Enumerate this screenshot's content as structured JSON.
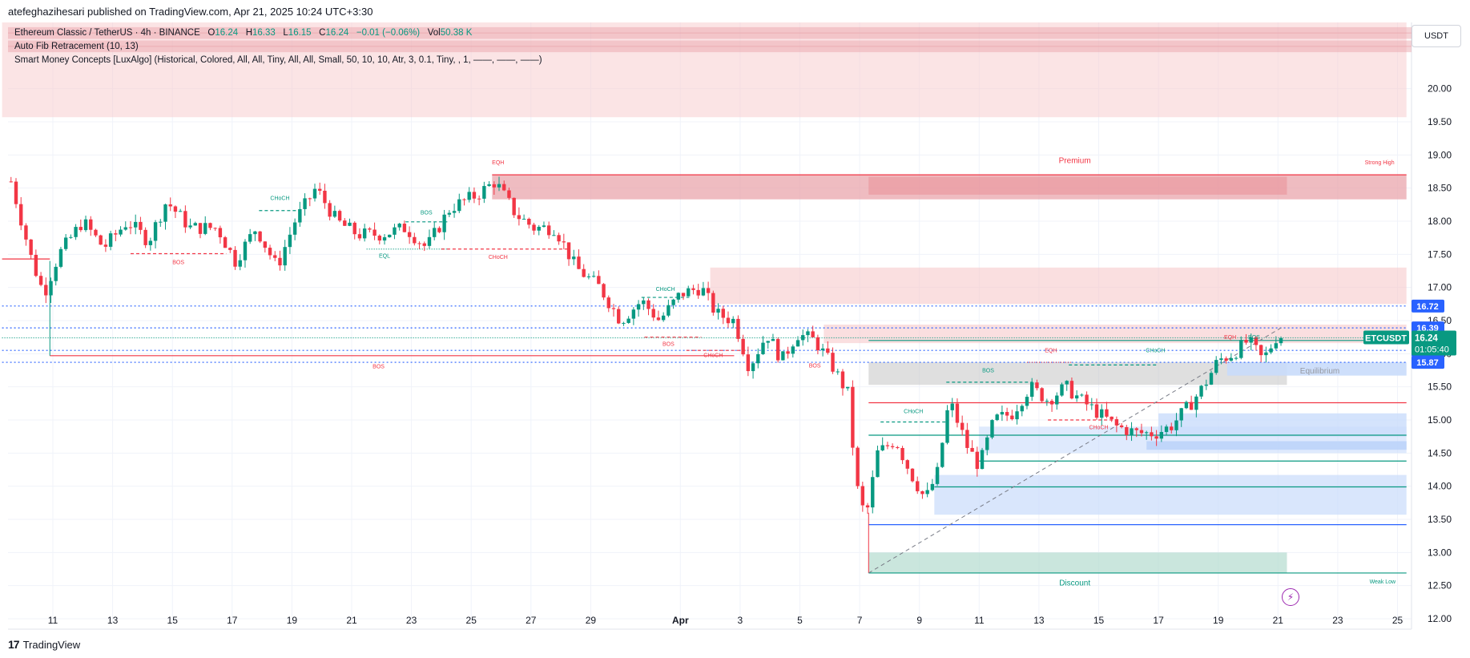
{
  "publish": {
    "text": "atefeghazihesari published on TradingView.com, Apr 21, 2025 10:24 UTC+3:30"
  },
  "legend": {
    "symbol": "Ethereum Classic / TetherUS · 4h · BINANCE",
    "o_label": "O",
    "o": "16.24",
    "h_label": "H",
    "h": "16.33",
    "l_label": "L",
    "l": "16.15",
    "c_label": "C",
    "c": "16.24",
    "change": "−0.01 (−0.06%)",
    "vol_label": "Vol",
    "vol": "50.38 K",
    "indicator1": "Auto Fib Retracement (10, 13)",
    "indicator2": "Smart Money Concepts [LuxAlgo] (Historical, Colored, All, All, Tiny, All, All, Small, 50, 10, 10, Atr, 3, 0.1, Tiny, , 1, ——, ——, ——)"
  },
  "currency": "USDT",
  "brand": "TradingView",
  "colors": {
    "up": "#089981",
    "down": "#f23645",
    "blue": "#2962ff",
    "premium": "#f7c9cc",
    "discount": "#cfe9e1",
    "demand": "#c9dcfb"
  },
  "chart_data": {
    "type": "candlestick",
    "ylim": [
      12.0,
      21.0
    ],
    "y_ticks": [
      "20.00",
      "19.50",
      "19.00",
      "18.50",
      "18.00",
      "17.50",
      "17.00",
      "16.50",
      "16.00",
      "15.50",
      "15.00",
      "14.50",
      "14.00",
      "13.50",
      "13.00",
      "12.50",
      "12.00"
    ],
    "x_ticks": [
      {
        "label": "11",
        "day": 11
      },
      {
        "label": "13",
        "day": 13
      },
      {
        "label": "15",
        "day": 15
      },
      {
        "label": "17",
        "day": 17
      },
      {
        "label": "19",
        "day": 19
      },
      {
        "label": "21",
        "day": 21
      },
      {
        "label": "23",
        "day": 23
      },
      {
        "label": "25",
        "day": 25
      },
      {
        "label": "27",
        "day": 27
      },
      {
        "label": "29",
        "day": 29
      },
      {
        "label": "Apr",
        "day": 32
      },
      {
        "label": "3",
        "day": 34
      },
      {
        "label": "5",
        "day": 36
      },
      {
        "label": "7",
        "day": 38
      },
      {
        "label": "9",
        "day": 40
      },
      {
        "label": "11",
        "day": 42
      },
      {
        "label": "13",
        "day": 44
      },
      {
        "label": "15",
        "day": 46
      },
      {
        "label": "17",
        "day": 48
      },
      {
        "label": "19",
        "day": 50
      },
      {
        "label": "21",
        "day": 52
      },
      {
        "label": "23",
        "day": 54
      },
      {
        "label": "25",
        "day": 56
      }
    ],
    "closes": [
      {
        "day": 9.6,
        "close": 18.6
      },
      {
        "day": 10.3,
        "close": 17.4
      },
      {
        "day": 10.7,
        "close": 16.9
      },
      {
        "day": 11.2,
        "close": 17.5
      },
      {
        "day": 12.0,
        "close": 18.0
      },
      {
        "day": 12.7,
        "close": 17.6
      },
      {
        "day": 13.5,
        "close": 18.0
      },
      {
        "day": 14.2,
        "close": 17.7
      },
      {
        "day": 14.8,
        "close": 18.3
      },
      {
        "day": 15.6,
        "close": 17.9
      },
      {
        "day": 16.5,
        "close": 17.9
      },
      {
        "day": 17.1,
        "close": 17.4
      },
      {
        "day": 17.8,
        "close": 17.9
      },
      {
        "day": 18.5,
        "close": 17.3
      },
      {
        "day": 19.1,
        "close": 18.0
      },
      {
        "day": 19.8,
        "close": 18.5
      },
      {
        "day": 20.5,
        "close": 18.0
      },
      {
        "day": 21.2,
        "close": 17.8
      },
      {
        "day": 22.0,
        "close": 17.8
      },
      {
        "day": 22.8,
        "close": 17.9
      },
      {
        "day": 23.5,
        "close": 17.6
      },
      {
        "day": 24.3,
        "close": 18.2
      },
      {
        "day": 25.2,
        "close": 18.4
      },
      {
        "day": 25.8,
        "close": 18.6
      },
      {
        "day": 26.5,
        "close": 18.1
      },
      {
        "day": 27.1,
        "close": 17.9
      },
      {
        "day": 27.8,
        "close": 17.9
      },
      {
        "day": 28.5,
        "close": 17.3
      },
      {
        "day": 29.3,
        "close": 17.0
      },
      {
        "day": 30.0,
        "close": 16.5
      },
      {
        "day": 30.7,
        "close": 16.8
      },
      {
        "day": 31.3,
        "close": 16.5
      },
      {
        "day": 32.0,
        "close": 16.9
      },
      {
        "day": 32.7,
        "close": 17.0
      },
      {
        "day": 33.2,
        "close": 16.6
      },
      {
        "day": 33.8,
        "close": 16.5
      },
      {
        "day": 34.3,
        "close": 15.8
      },
      {
        "day": 34.9,
        "close": 16.3
      },
      {
        "day": 35.4,
        "close": 15.9
      },
      {
        "day": 35.9,
        "close": 16.3
      },
      {
        "day": 36.5,
        "close": 16.2
      },
      {
        "day": 37.1,
        "close": 15.8
      },
      {
        "day": 37.6,
        "close": 15.4
      },
      {
        "day": 37.9,
        "close": 14.0
      },
      {
        "day": 38.2,
        "close": 13.5
      },
      {
        "day": 38.6,
        "close": 14.5
      },
      {
        "day": 39.2,
        "close": 14.7
      },
      {
        "day": 39.7,
        "close": 14.2
      },
      {
        "day": 40.2,
        "close": 13.8
      },
      {
        "day": 40.6,
        "close": 14.2
      },
      {
        "day": 41.0,
        "close": 15.3
      },
      {
        "day": 41.6,
        "close": 14.6
      },
      {
        "day": 42.0,
        "close": 14.3
      },
      {
        "day": 42.5,
        "close": 15.0
      },
      {
        "day": 43.1,
        "close": 15.1
      },
      {
        "day": 43.7,
        "close": 15.5
      },
      {
        "day": 44.3,
        "close": 15.3
      },
      {
        "day": 44.9,
        "close": 15.5
      },
      {
        "day": 45.4,
        "close": 15.3
      },
      {
        "day": 46.0,
        "close": 15.1
      },
      {
        "day": 46.6,
        "close": 14.9
      },
      {
        "day": 47.3,
        "close": 14.8
      },
      {
        "day": 47.9,
        "close": 14.8
      },
      {
        "day": 48.4,
        "close": 14.9
      },
      {
        "day": 49.0,
        "close": 15.2
      },
      {
        "day": 49.5,
        "close": 15.5
      },
      {
        "day": 50.0,
        "close": 15.9
      },
      {
        "day": 50.5,
        "close": 16.0
      },
      {
        "day": 51.0,
        "close": 16.2
      },
      {
        "day": 51.5,
        "close": 15.9
      },
      {
        "day": 52.0,
        "close": 16.3
      },
      {
        "day": 52.2,
        "close": 16.24
      }
    ],
    "price_labels": [
      {
        "price": 16.72,
        "label": "16.72",
        "kind": "level"
      },
      {
        "price": 16.39,
        "label": "16.39",
        "kind": "level"
      },
      {
        "price": 16.05,
        "label": "16.05",
        "kind": "level"
      },
      {
        "price": 15.87,
        "label": "15.87",
        "kind": "level"
      }
    ],
    "current": {
      "symbol": "ETCUSDT",
      "price": 16.24,
      "label": "16.24",
      "countdown": "01:05:40"
    },
    "zones": [
      {
        "name": "top-zone",
        "x0": 9.3,
        "x1": 56.3,
        "y0": 19.57,
        "y1": 21.0,
        "color": "#f7c9cc",
        "opacity": 0.5
      },
      {
        "name": "premium-zone",
        "x0": 25.7,
        "x1": 56.3,
        "y0": 18.33,
        "y1": 18.7,
        "color": "#e8a0a6",
        "opacity": 0.7
      },
      {
        "name": "premium-inner-zone",
        "x0": 38.3,
        "x1": 52.3,
        "y0": 18.4,
        "y1": 18.67,
        "color": "#ea8f97",
        "opacity": 0.55
      },
      {
        "name": "supply-zone",
        "x0": 33.0,
        "x1": 56.3,
        "y0": 16.75,
        "y1": 17.3,
        "color": "#f7c9cc",
        "opacity": 0.6
      },
      {
        "name": "supply-zone-2",
        "x0": 36.8,
        "x1": 56.3,
        "y0": 16.16,
        "y1": 16.44,
        "color": "#f7c9cc",
        "opacity": 0.6
      },
      {
        "name": "equilibrium-zone",
        "x0": 38.3,
        "x1": 52.3,
        "y0": 15.53,
        "y1": 15.87,
        "color": "#c4c4c4",
        "opacity": 0.55
      },
      {
        "name": "equilibrium-blue-zone",
        "x0": 50.3,
        "x1": 56.3,
        "y0": 15.67,
        "y1": 15.87,
        "color": "#c9dcfb",
        "opacity": 0.9
      },
      {
        "name": "demand-zone-1",
        "x0": 48.0,
        "x1": 56.3,
        "y0": 14.75,
        "y1": 15.1,
        "color": "#c9dcfb",
        "opacity": 0.8
      },
      {
        "name": "demand-zone-2",
        "x0": 47.6,
        "x1": 56.3,
        "y0": 14.55,
        "y1": 14.68,
        "color": "#a9c6f7",
        "opacity": 0.9
      },
      {
        "name": "demand-zone-3",
        "x0": 42.0,
        "x1": 56.3,
        "y0": 14.5,
        "y1": 14.9,
        "color": "#c9dcfb",
        "opacity": 0.6
      },
      {
        "name": "demand-zone-4",
        "x0": 40.5,
        "x1": 56.3,
        "y0": 13.57,
        "y1": 14.17,
        "color": "#c9dcfb",
        "opacity": 0.7
      },
      {
        "name": "discount-zone",
        "x0": 38.3,
        "x1": 52.3,
        "y0": 12.69,
        "y1": 13.0,
        "color": "#b3dccf",
        "opacity": 0.7
      }
    ],
    "lines": [
      {
        "name": "bos-red-line",
        "x0": 10.9,
        "x1": 33.8,
        "y": 15.97,
        "color": "#f23645",
        "dash": ""
      },
      {
        "name": "left-red-line",
        "x0": 9.3,
        "x1": 10.9,
        "y": 17.43,
        "color": "#f23645",
        "dash": ""
      },
      {
        "name": "red-level-1",
        "x0": 38.3,
        "x1": 56.3,
        "y": 15.26,
        "color": "#f23645",
        "dash": ""
      },
      {
        "name": "green-level-1",
        "x0": 38.3,
        "x1": 56.3,
        "y": 14.77,
        "color": "#089981",
        "dash": ""
      },
      {
        "name": "green-level-2",
        "x0": 42.0,
        "x1": 56.3,
        "y": 14.38,
        "color": "#089981",
        "dash": ""
      },
      {
        "name": "green-level-3",
        "x0": 40.5,
        "x1": 56.3,
        "y": 13.99,
        "color": "#089981",
        "dash": ""
      },
      {
        "name": "blue-level-1",
        "x0": 38.3,
        "x1": 56.3,
        "y": 13.42,
        "color": "#2962ff",
        "dash": ""
      },
      {
        "name": "weak-low-line",
        "x0": 38.3,
        "x1": 56.3,
        "y": 12.69,
        "color": "#089981",
        "dash": ""
      },
      {
        "name": "strong-high-line",
        "x0": 25.7,
        "x1": 56.3,
        "y": 18.7,
        "color": "#f23645",
        "dash": ""
      },
      {
        "name": "eq-line",
        "x0": 38.3,
        "x1": 56.3,
        "y": 16.2,
        "color": "#089981",
        "dash": ""
      },
      {
        "name": "dotted-16.72",
        "x0": 9.3,
        "x1": 56.3,
        "y": 16.72,
        "color": "#2962ff",
        "dash": "2,3"
      },
      {
        "name": "dotted-16.39",
        "x0": 9.3,
        "x1": 56.3,
        "y": 16.39,
        "color": "#2962ff",
        "dash": "2,3"
      },
      {
        "name": "dotted-16.05",
        "x0": 9.3,
        "x1": 56.3,
        "y": 16.05,
        "color": "#2962ff",
        "dash": "2,3"
      },
      {
        "name": "dotted-15.87",
        "x0": 9.3,
        "x1": 56.3,
        "y": 15.87,
        "color": "#2962ff",
        "dash": "2,3"
      },
      {
        "name": "dotted-16.24",
        "x0": 9.3,
        "x1": 56.3,
        "y": 16.24,
        "color": "#089981",
        "dash": "1,2"
      },
      {
        "name": "bos-1-line",
        "x0": 13.6,
        "x1": 16.8,
        "y": 17.51,
        "color": "#f23645",
        "dash": "4,3"
      },
      {
        "name": "choch-1-line",
        "x0": 17.9,
        "x1": 19.3,
        "y": 18.16,
        "color": "#089981",
        "dash": "4,3"
      },
      {
        "name": "bos-2-line",
        "x0": 22.8,
        "x1": 24.2,
        "y": 17.99,
        "color": "#089981",
        "dash": "4,3"
      },
      {
        "name": "eql-line",
        "x0": 21.5,
        "x1": 24.2,
        "y": 17.58,
        "color": "#089981",
        "dash": "1,2"
      },
      {
        "name": "choch-2-line",
        "x0": 24.0,
        "x1": 28.3,
        "y": 17.58,
        "color": "#f23645",
        "dash": "4,3"
      },
      {
        "name": "choch-3-line",
        "x0": 30.7,
        "x1": 32.3,
        "y": 16.85,
        "color": "#089981",
        "dash": "4,3"
      },
      {
        "name": "choch-4-line",
        "x0": 32.2,
        "x1": 34.2,
        "y": 16.05,
        "color": "#f23645",
        "dash": "4,3"
      },
      {
        "name": "bos-3-line",
        "x0": 30.8,
        "x1": 32.7,
        "y": 16.25,
        "color": "#f23645",
        "dash": "4,3"
      },
      {
        "name": "bos-4-line",
        "x0": 40.9,
        "x1": 43.8,
        "y": 15.57,
        "color": "#089981",
        "dash": "4,3"
      },
      {
        "name": "choch-5-line",
        "x0": 38.7,
        "x1": 40.9,
        "y": 14.97,
        "color": "#089981",
        "dash": "4,3"
      },
      {
        "name": "eqh-line",
        "x0": 43.6,
        "x1": 45.1,
        "y": 15.87,
        "color": "#f23645",
        "dash": "1,2"
      },
      {
        "name": "choch-6-line",
        "x0": 45.0,
        "x1": 48.0,
        "y": 15.83,
        "color": "#089981",
        "dash": "4,3"
      },
      {
        "name": "choch-7-line",
        "x0": 44.3,
        "x1": 46.6,
        "y": 15.0,
        "color": "#f23645",
        "dash": "4,3"
      }
    ],
    "fib_line": {
      "x0": 38.3,
      "y0": 12.69,
      "x1": 52.1,
      "y1": 16.39
    },
    "annotations": [
      {
        "text": "EQH",
        "day": 25.9,
        "price": 18.86,
        "color": "#f23645"
      },
      {
        "text": "Premium",
        "day": 45.2,
        "price": 18.88,
        "color": "#f23645"
      },
      {
        "text": "Strong High",
        "day": 55.4,
        "price": 18.86,
        "color": "#f23645"
      },
      {
        "text": "CHoCH",
        "day": 18.6,
        "price": 18.32,
        "color": "#089981"
      },
      {
        "text": "BOS",
        "day": 23.5,
        "price": 18.1,
        "color": "#089981"
      },
      {
        "text": "BOS",
        "day": 15.2,
        "price": 17.35,
        "color": "#f23645"
      },
      {
        "text": "EQL",
        "day": 22.1,
        "price": 17.45,
        "color": "#089981"
      },
      {
        "text": "CHoCH",
        "day": 25.9,
        "price": 17.43,
        "color": "#f23645"
      },
      {
        "text": "CHoCH",
        "day": 31.5,
        "price": 16.95,
        "color": "#089981"
      },
      {
        "text": "BOS",
        "day": 31.6,
        "price": 16.12,
        "color": "#f23645"
      },
      {
        "text": "CHoCH",
        "day": 33.1,
        "price": 15.95,
        "color": "#f23645"
      },
      {
        "text": "BOS",
        "day": 21.9,
        "price": 15.78,
        "color": "#f23645"
      },
      {
        "text": "BOS",
        "day": 36.5,
        "price": 15.79,
        "color": "#f23645"
      },
      {
        "text": "BOS",
        "day": 42.3,
        "price": 15.72,
        "color": "#089981"
      },
      {
        "text": "EQH",
        "day": 44.4,
        "price": 16.02,
        "color": "#f23645"
      },
      {
        "text": "CHoCH",
        "day": 47.9,
        "price": 16.02,
        "color": "#089981"
      },
      {
        "text": "EQH",
        "day": 50.4,
        "price": 16.22,
        "color": "#f23645"
      },
      {
        "text": "BOS",
        "day": 51.2,
        "price": 16.22,
        "color": "#089981"
      },
      {
        "text": "Equilibrium",
        "day": 53.4,
        "price": 15.7,
        "color": "#9598a1"
      },
      {
        "text": "CHoCH",
        "day": 39.8,
        "price": 15.1,
        "color": "#089981"
      },
      {
        "text": "CHoCH",
        "day": 46.0,
        "price": 14.86,
        "color": "#f23645"
      },
      {
        "text": "Discount",
        "day": 45.2,
        "price": 12.5,
        "color": "#089981"
      },
      {
        "text": "Weak Low",
        "day": 55.5,
        "price": 12.53,
        "color": "#089981"
      }
    ]
  }
}
